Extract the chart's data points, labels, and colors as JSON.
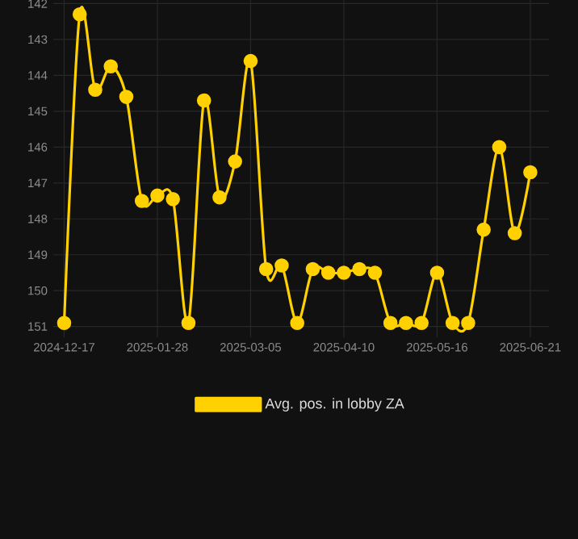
{
  "chart_data": {
    "type": "line",
    "categories": [
      "2024-12-17",
      null,
      null,
      null,
      null,
      null,
      "2025-01-28",
      null,
      null,
      null,
      null,
      null,
      "2025-03-05",
      null,
      null,
      null,
      null,
      null,
      "2025-04-10",
      null,
      null,
      null,
      null,
      null,
      "2025-05-16",
      null,
      null,
      null,
      null,
      null,
      "2025-06-21"
    ],
    "series": [
      {
        "name": "Avg. pos. in lobby ZA",
        "color": "#ffd100",
        "values": [
          150.9,
          142.3,
          144.4,
          143.75,
          144.6,
          147.5,
          147.35,
          147.45,
          150.9,
          144.7,
          147.4,
          146.4,
          143.6,
          149.4,
          149.3,
          150.9,
          149.4,
          149.5,
          149.5,
          149.4,
          149.5,
          150.9,
          150.9,
          150.9,
          149.5,
          150.9,
          150.9,
          148.3,
          146.0,
          148.4,
          146.7
        ]
      }
    ],
    "ylim": [
      151.3,
      141.9
    ],
    "yticks": [
      142,
      143,
      144,
      145,
      146,
      147,
      148,
      149,
      150,
      151
    ],
    "grid": true,
    "legend": "bottom",
    "marker": "circle"
  }
}
